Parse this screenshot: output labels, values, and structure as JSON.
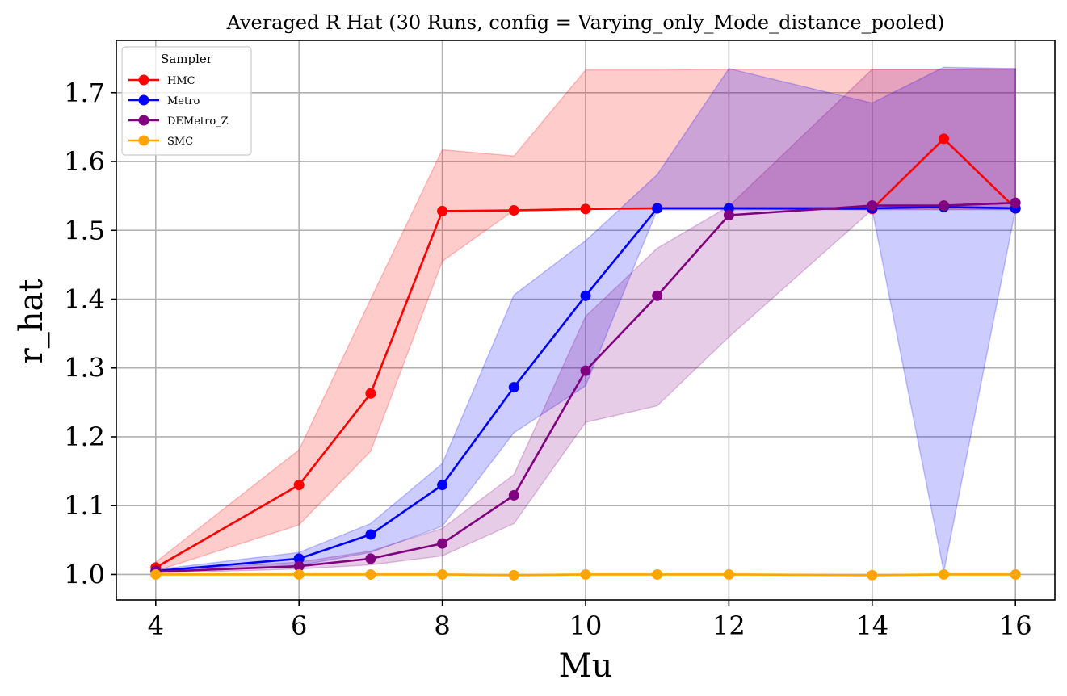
{
  "chart_data": {
    "type": "line",
    "title": "Averaged R Hat (30 Runs, config = Varying_only_Mode_distance_pooled)",
    "xlabel": "Mu",
    "ylabel": "r_hat",
    "xlim": [
      3.45,
      16.55
    ],
    "ylim": [
      0.963,
      1.776
    ],
    "xticks": [
      4,
      6,
      8,
      10,
      12,
      14,
      16
    ],
    "xtick_labels": [
      "4",
      "6",
      "8",
      "10",
      "12",
      "14",
      "16"
    ],
    "yticks": [
      1.0,
      1.1,
      1.2,
      1.3,
      1.4,
      1.5,
      1.6,
      1.7
    ],
    "ytick_labels": [
      "1.0",
      "1.1",
      "1.2",
      "1.3",
      "1.4",
      "1.5",
      "1.6",
      "1.7"
    ],
    "grid": true,
    "legend": {
      "title": "Sampler",
      "position": "top-left"
    },
    "x": [
      4,
      6,
      7,
      8,
      9,
      10,
      11,
      12,
      14,
      15,
      16
    ],
    "series": [
      {
        "name": "HMC",
        "color": "#ff0000",
        "band_color": "#ff0000",
        "values": [
          1.01,
          1.13,
          1.263,
          1.528,
          1.529,
          1.531,
          1.532,
          1.532,
          1.531,
          1.633,
          1.532
        ],
        "band_lower": [
          1.005,
          1.072,
          1.179,
          1.455,
          1.529,
          1.531,
          1.532,
          1.532,
          1.531,
          1.531,
          1.531
        ],
        "band_upper": [
          1.018,
          1.181,
          1.4,
          1.617,
          1.608,
          1.733,
          1.733,
          1.734,
          1.734,
          1.734,
          1.734
        ]
      },
      {
        "name": "Metro",
        "color": "#0000ff",
        "band_color": "#0000ff",
        "values": [
          1.005,
          1.023,
          1.058,
          1.13,
          1.272,
          1.405,
          1.532,
          1.532,
          1.532,
          1.534,
          1.532
        ],
        "band_lower": [
          1.003,
          1.013,
          1.032,
          1.07,
          1.206,
          1.274,
          1.53,
          1.53,
          1.53,
          1.004,
          1.53
        ],
        "band_upper": [
          1.007,
          1.032,
          1.074,
          1.161,
          1.406,
          1.485,
          1.581,
          1.735,
          1.685,
          1.737,
          1.735
        ]
      },
      {
        "name": "DEMetro_Z",
        "color": "#800080",
        "band_color": "#800080",
        "values": [
          1.004,
          1.012,
          1.023,
          1.045,
          1.115,
          1.296,
          1.405,
          1.522,
          1.536,
          1.536,
          1.54
        ],
        "band_lower": [
          1.002,
          1.008,
          1.014,
          1.027,
          1.074,
          1.221,
          1.245,
          1.345,
          1.53,
          1.53,
          1.53
        ],
        "band_upper": [
          1.006,
          1.018,
          1.034,
          1.067,
          1.145,
          1.375,
          1.474,
          1.535,
          1.734,
          1.734,
          1.735
        ]
      },
      {
        "name": "SMC",
        "color": "#ffa500",
        "band_color": "#ffa500",
        "values": [
          1.0,
          1.0,
          1.0,
          1.0,
          0.999,
          1.0,
          1.0,
          1.0,
          0.999,
          1.0,
          1.0
        ],
        "band_lower": [
          0.999,
          0.999,
          0.999,
          0.999,
          0.998,
          0.999,
          0.999,
          0.999,
          0.998,
          0.999,
          0.999
        ],
        "band_upper": [
          1.001,
          1.001,
          1.001,
          1.001,
          1.0,
          1.001,
          1.001,
          1.001,
          1.0,
          1.001,
          1.001
        ]
      }
    ]
  }
}
